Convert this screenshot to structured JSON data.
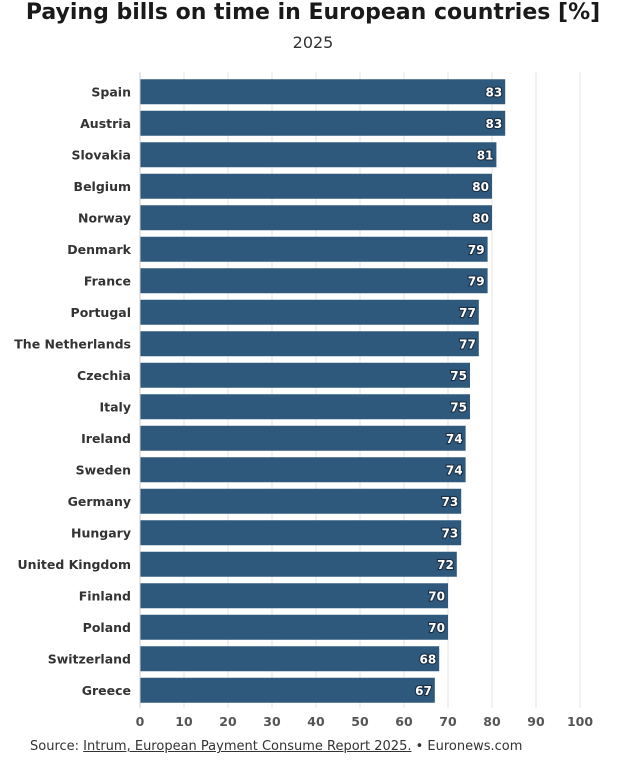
{
  "title": "Paying bills on time in European countries [%]",
  "subtitle": "2025",
  "source": {
    "prefix": "Source: ",
    "link_text": "Intrum, European Payment Consume Report 2025.",
    "suffix": " • Euronews.com"
  },
  "colors": {
    "bar": "#2f587d",
    "grid": "#e6e6e6",
    "axis": "#555555"
  },
  "chart_data": {
    "type": "bar",
    "orientation": "horizontal",
    "categories": [
      "Spain",
      "Austria",
      "Slovakia",
      "Belgium",
      "Norway",
      "Denmark",
      "France",
      "Portugal",
      "The Netherlands",
      "Czechia",
      "Italy",
      "Ireland",
      "Sweden",
      "Germany",
      "Hungary",
      "United Kingdom",
      "Finland",
      "Poland",
      "Switzerland",
      "Greece"
    ],
    "values": [
      83,
      83,
      81,
      80,
      80,
      79,
      79,
      77,
      77,
      75,
      75,
      74,
      74,
      73,
      73,
      72,
      70,
      70,
      68,
      67
    ],
    "xlim": [
      0,
      100
    ],
    "xticks": [
      0,
      10,
      20,
      30,
      40,
      50,
      60,
      70,
      80,
      90,
      100
    ],
    "grid": true,
    "data_labels": true
  }
}
